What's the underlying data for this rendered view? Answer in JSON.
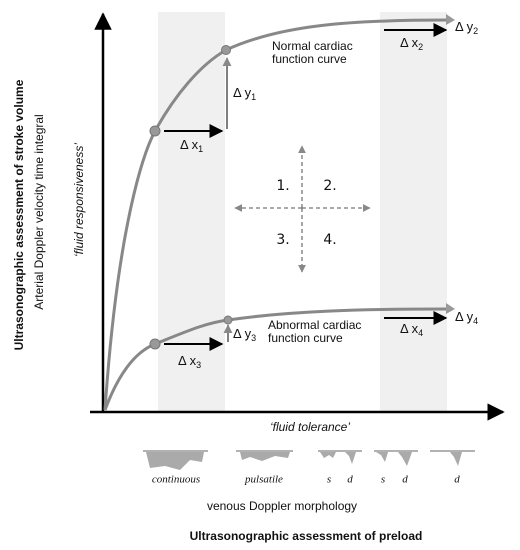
{
  "axes": {
    "y_title": "Ultrasonographic assessment of stroke volume",
    "y_subtitle": "Arterial Doppler velocity time integral",
    "y_concept": "‘fluid responsiveness’",
    "x_concept": "‘fluid tolerance’",
    "x_title": "Ultrasonographic assessment of preload"
  },
  "curves": [
    {
      "label_lines": [
        "Normal cardiac",
        "function curve"
      ]
    },
    {
      "label_lines": [
        "Abnormal cardiac",
        "function curve"
      ]
    }
  ],
  "deltas": [
    {
      "symbol": "Δ x",
      "sub": "1"
    },
    {
      "symbol": "Δ y",
      "sub": "1"
    },
    {
      "symbol": "Δ x",
      "sub": "2"
    },
    {
      "symbol": "Δ y",
      "sub": "2"
    },
    {
      "symbol": "Δ x",
      "sub": "3"
    },
    {
      "symbol": "Δ y",
      "sub": "3"
    },
    {
      "symbol": "Δ x",
      "sub": "4"
    },
    {
      "symbol": "Δ y",
      "sub": "4"
    }
  ],
  "quadrants": [
    "1.",
    "2.",
    "3.",
    "4."
  ],
  "venous": {
    "title": "venous Doppler morphology",
    "waveforms": [
      {
        "labels": [
          "continuous"
        ]
      },
      {
        "labels": [
          "pulsatile"
        ]
      },
      {
        "labels": [
          "s",
          "d"
        ]
      },
      {
        "labels": [
          "s",
          "d"
        ]
      },
      {
        "labels": [
          "d"
        ]
      }
    ]
  }
}
